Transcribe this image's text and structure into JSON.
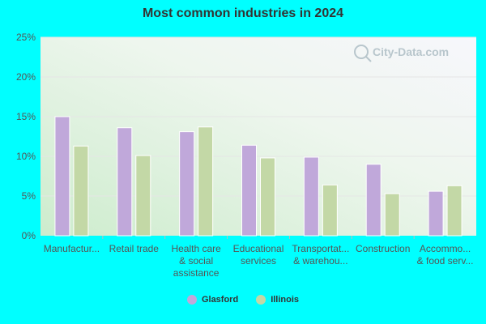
{
  "chart_data": {
    "type": "bar",
    "title": "Most common industries in 2024",
    "categories": [
      [
        "Manufactur..."
      ],
      [
        "Retail trade"
      ],
      [
        "Health care",
        "& social",
        "assistance"
      ],
      [
        "Educational",
        "services"
      ],
      [
        "Transportat...",
        "& warehou..."
      ],
      [
        "Construction"
      ],
      [
        "Accommo...",
        "& food serv..."
      ]
    ],
    "series": [
      {
        "name": "Glasford",
        "color": "#c0a8da",
        "values": [
          15.0,
          13.6,
          13.1,
          11.4,
          9.9,
          9.0,
          5.6
        ]
      },
      {
        "name": "Illinois",
        "color": "#c3d8a6",
        "values": [
          11.3,
          10.1,
          13.7,
          9.8,
          6.4,
          5.3,
          6.3
        ]
      }
    ],
    "ylim": [
      0,
      25
    ],
    "yticks": [
      "0%",
      "5%",
      "10%",
      "15%",
      "20%",
      "25%"
    ],
    "grid": true,
    "legend_position": "bottom",
    "watermark": "City-Data.com"
  }
}
